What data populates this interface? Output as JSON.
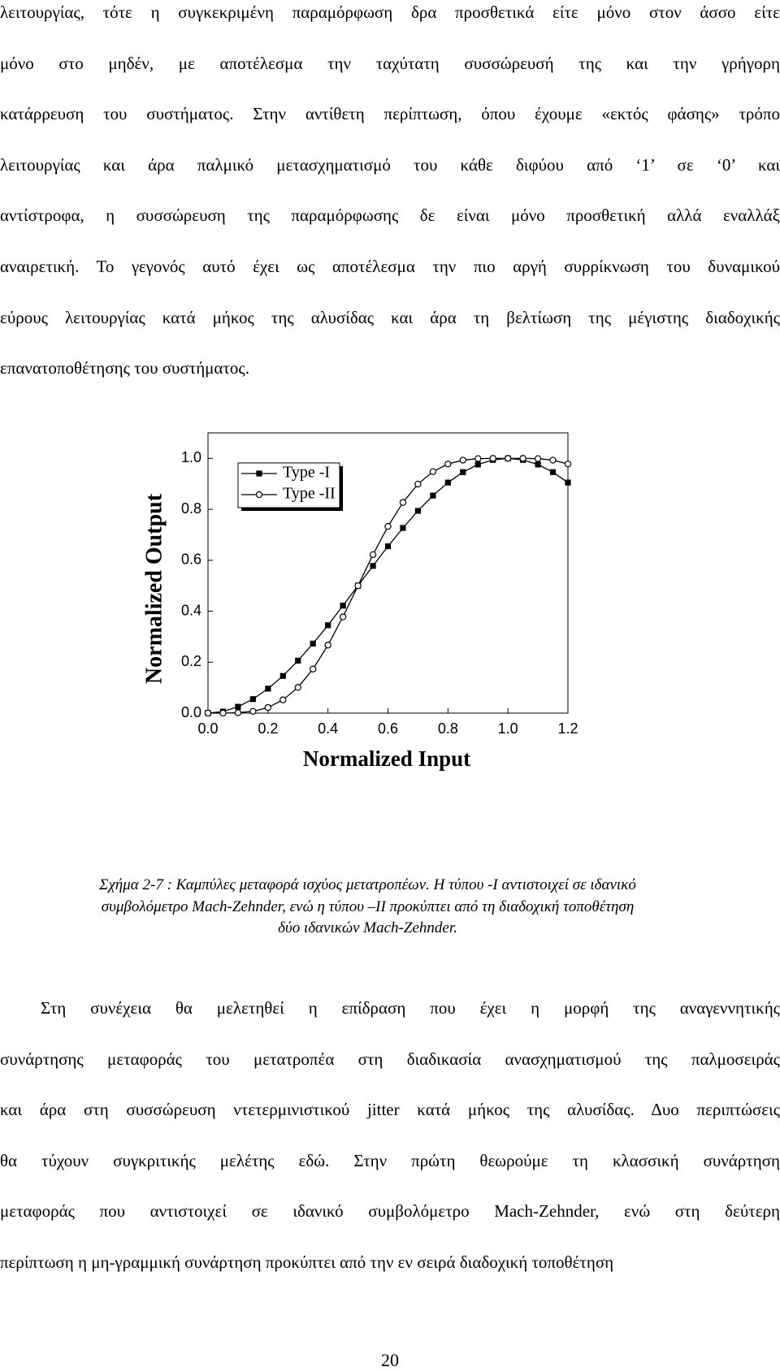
{
  "document": {
    "paragraphs": [
      {
        "lines": [
          "λειτουργίας, τότε η συγκεκριμένη παραμόρφωση δρα προσθετικά είτε μόνο στον άσσο είτε",
          "μόνο στο μηδέν, με αποτέλεσμα την ταχύτατη συσσώρευσή της και την γρήγορη",
          "κατάρρευση του συστήματος. Στην αντίθετη περίπτωση, όπου έχουμε «εκτός φάσης» τρόπο",
          "λειτουργίας και άρα παλμικό μετασχηματισμό του κάθε διφύου από ‘1’ σε ‘0’ και",
          "αντίστροφα, η συσσώρευση της παραμόρφωσης δε είναι μόνο προσθετική αλλά εναλλάξ",
          "αναιρετική. Το γεγονός αυτό έχει ως αποτέλεσμα την πιο αργή συρρίκνωση του δυναμικού",
          "εύρους λειτουργίας κατά μήκος της αλυσίδας και άρα τη βελτίωση της μέγιστης διαδοχικής",
          "επανατοποθέτησης του συστήματος."
        ]
      },
      {
        "lines": [
          "Στη συνέχεια θα μελετηθεί η επίδραση που έχει η μορφή της αναγεννητικής",
          "συνάρτησης μεταφοράς του μετατροπέα στη διαδικασία ανασχηματισμού της παλμοσειράς",
          "και άρα στη συσσώρευση ντετερμινιστικού jitter κατά μήκος της αλυσίδας. Δυο περιπτώσεις",
          "θα τύχουν συγκριτικής μελέτης εδώ. Στην πρώτη θεωρούμε τη κλασσική συνάρτηση",
          "μεταφοράς που αντιστοιχεί σε ιδανικό συμβολόμετρο Mach-Zehnder, ενώ στη δεύτερη",
          "περίπτωση η μη-γραμμική συνάρτηση προκύπτει από την εν σειρά διαδοχική τοποθέτηση"
        ]
      }
    ],
    "caption": [
      "Σχήμα 2-7 : Καμπύλες μεταφορά ισχύος μετατροπέων. Η τύπου -I αντιστοιχεί σε ιδανικό",
      "συμβολόμετρο Mach-Zehnder, ενώ η τύπου –II προκύπτει από τη διαδοχική τοποθέτηση",
      "δύο ιδανικών Mach-Zehnder."
    ],
    "page_number": "20"
  },
  "chart_data": {
    "type": "line",
    "x_label": "Normalized Input",
    "y_label": "Normalized Output",
    "x": [
      0,
      0.05,
      0.1,
      0.15,
      0.2,
      0.25,
      0.3,
      0.35,
      0.4,
      0.45,
      0.5,
      0.55,
      0.6,
      0.65,
      0.7,
      0.75,
      0.8,
      0.85,
      0.9,
      0.95,
      1.0,
      1.05,
      1.1,
      1.15,
      1.2
    ],
    "series": [
      {
        "name": "Type -I",
        "color": "#000000",
        "marker": "square",
        "values": [
          0,
          0.006,
          0.025,
          0.055,
          0.096,
          0.146,
          0.206,
          0.273,
          0.345,
          0.422,
          0.5,
          0.578,
          0.655,
          0.727,
          0.794,
          0.854,
          0.905,
          0.946,
          0.976,
          0.994,
          1.0,
          0.994,
          0.976,
          0.946,
          0.905
        ]
      },
      {
        "name": "Type -II",
        "color": "#000000",
        "marker": "circle",
        "values": [
          0,
          0.0001,
          0.0015,
          0.007,
          0.022,
          0.052,
          0.101,
          0.173,
          0.267,
          0.378,
          0.5,
          0.622,
          0.733,
          0.827,
          0.899,
          0.948,
          0.978,
          0.993,
          0.999,
          1.0,
          1.0,
          1.0,
          0.999,
          0.993,
          0.978
        ]
      }
    ],
    "xlim": [
      0,
      1.2
    ],
    "ylim": [
      0,
      1.1
    ],
    "xticks": [
      {
        "value": 0,
        "label": "0.0"
      },
      0.2,
      0.4,
      0.6,
      0.8,
      {
        "value": 1,
        "label": "1.0"
      },
      1.2
    ],
    "yticks": [
      {
        "value": 0,
        "label": "0.0"
      },
      0.2,
      0.4,
      0.6,
      0.8,
      {
        "value": 1,
        "label": "1.0"
      }
    ],
    "grid": false,
    "legend": "upper-left"
  }
}
